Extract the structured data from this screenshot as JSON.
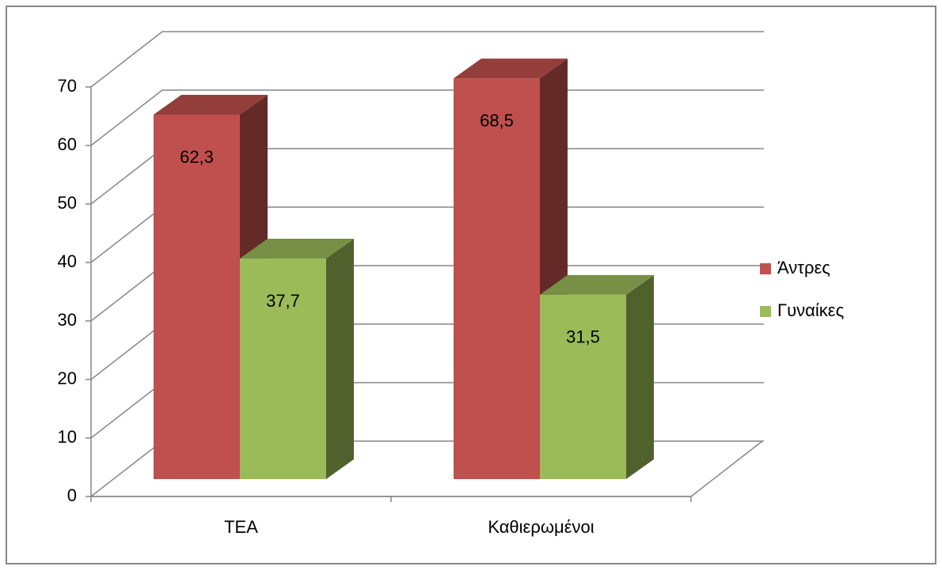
{
  "chart_data": {
    "type": "bar3d",
    "categories": [
      "ΤΕΑ",
      "Καθιερωμένοι"
    ],
    "series": [
      {
        "name": "Άντρες",
        "color": "#c0504d",
        "values": [
          62.3,
          68.5
        ],
        "value_labels": [
          "62,3",
          "68,5"
        ]
      },
      {
        "name": "Γυναίκες",
        "color": "#9bbb59",
        "values": [
          37.7,
          31.5
        ],
        "value_labels": [
          "37,7",
          "31,5"
        ]
      }
    ],
    "ylim": [
      0,
      70
    ],
    "yticks": [
      0,
      10,
      20,
      30,
      40,
      50,
      60,
      70
    ],
    "grid": true,
    "legend": "right"
  }
}
